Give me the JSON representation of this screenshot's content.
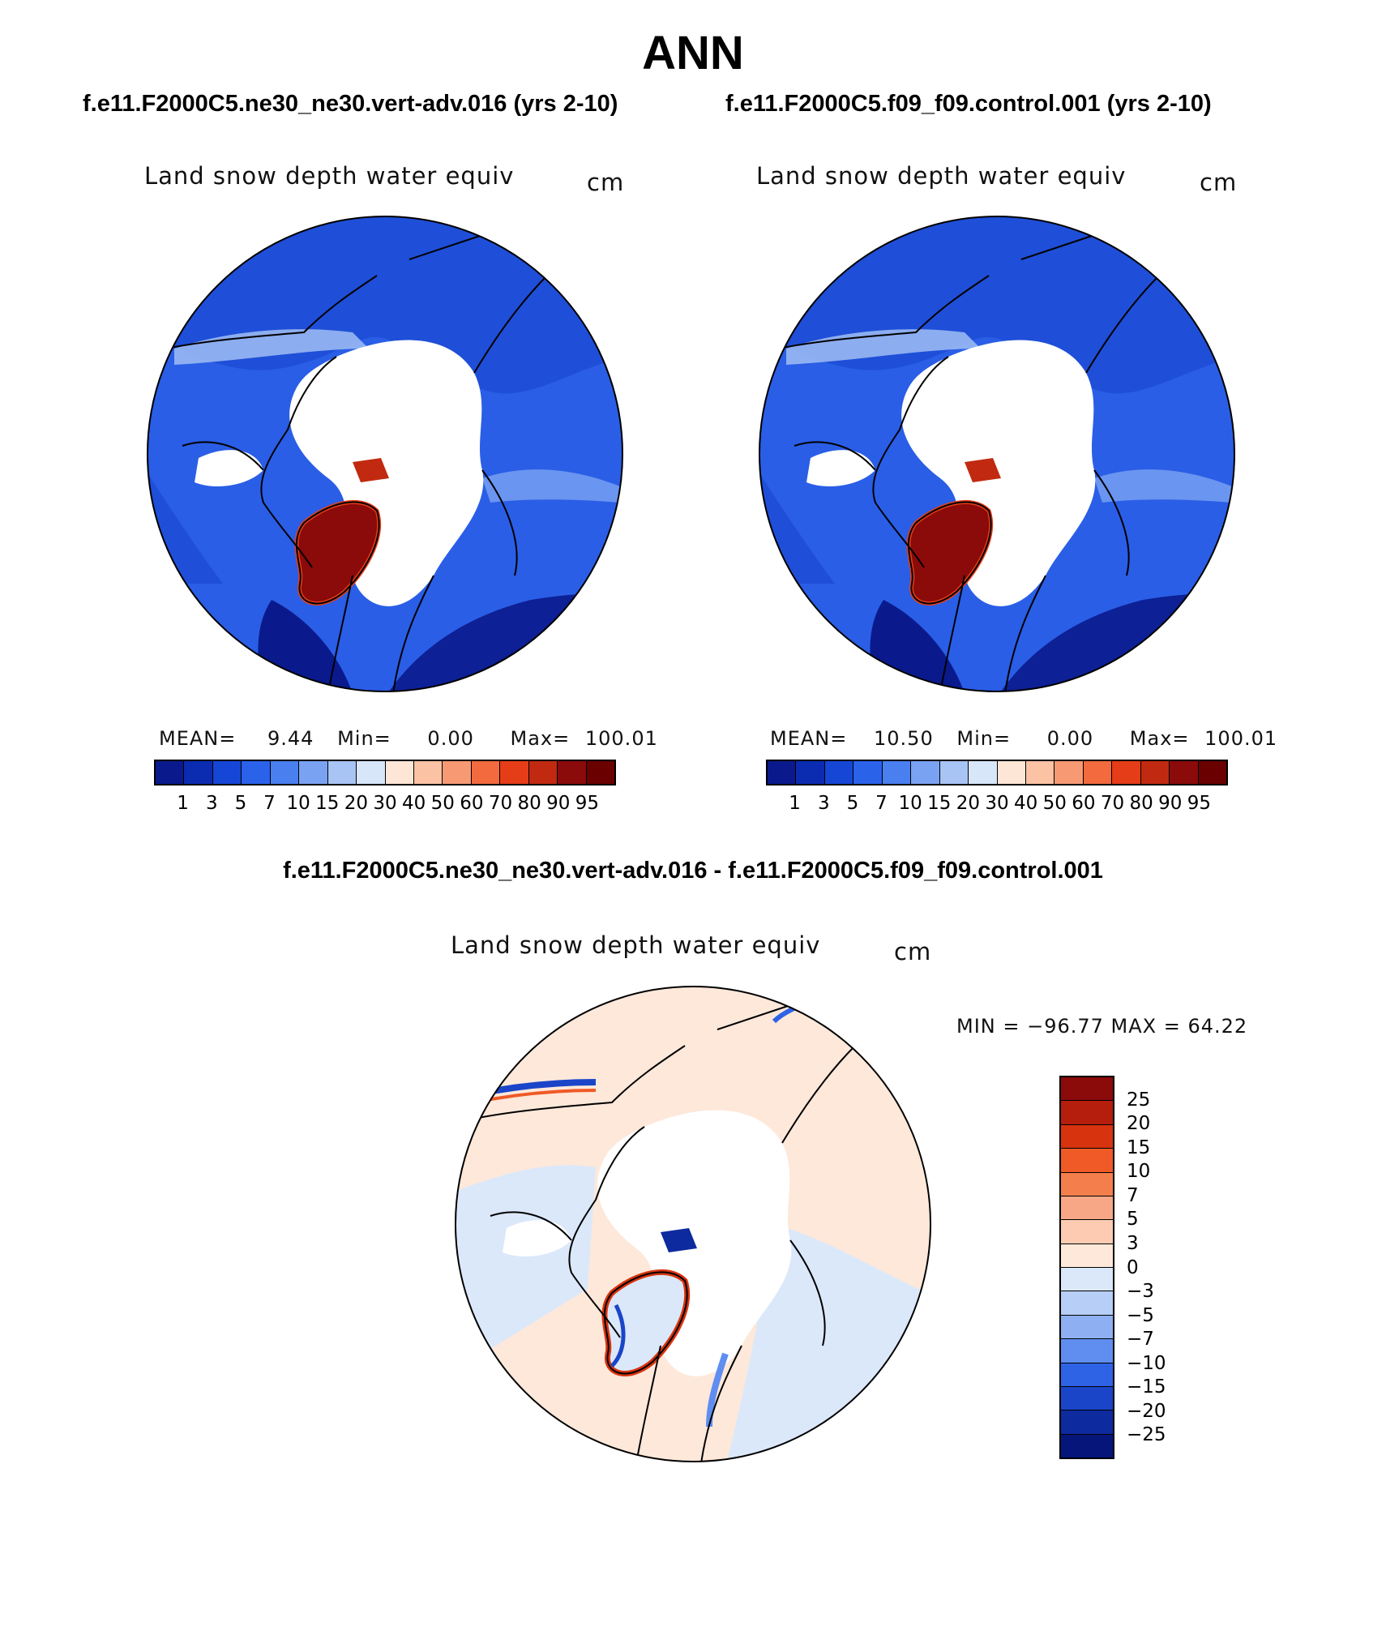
{
  "title": "ANN",
  "panels": [
    {
      "case": "f.e11.F2000C5.ne30_ne30.vert-adv.016 (yrs 2-10)",
      "variable": "Land snow depth water equiv",
      "units": "cm",
      "mean_label": "MEAN=",
      "mean_value": "9.44",
      "min_label": "Min=",
      "min_value": "0.00",
      "max_label": "Max=",
      "max_value": "100.01"
    },
    {
      "case": "f.e11.F2000C5.f09_f09.control.001 (yrs 2-10)",
      "variable": "Land snow depth water equiv",
      "units": "cm",
      "mean_label": "MEAN=",
      "mean_value": "10.50",
      "min_label": "Min=",
      "min_value": "0.00",
      "max_label": "Max=",
      "max_value": "100.01"
    }
  ],
  "diff": {
    "title": "f.e11.F2000C5.ne30_ne30.vert-adv.016 - f.e11.F2000C5.f09_f09.control.001",
    "variable": "Land snow depth water equiv",
    "units": "cm",
    "minmax": "MIN = −96.77 MAX =   64.22"
  },
  "colorbar_abs": {
    "levels": [
      "1",
      "3",
      "5",
      "7",
      "10",
      "15",
      "20",
      "30",
      "40",
      "50",
      "60",
      "70",
      "80",
      "90",
      "95"
    ],
    "colors": [
      "#0a1a8c",
      "#0b2bb0",
      "#1546d6",
      "#2a62ea",
      "#4a7ff0",
      "#7aa2f2",
      "#a8c4f5",
      "#d8e6fa",
      "#fde6d6",
      "#fbc3a4",
      "#f79a74",
      "#f26a3e",
      "#e53d18",
      "#c12a10",
      "#8b0a0a",
      "#6a0000"
    ]
  },
  "colorbar_diff": {
    "levels": [
      "25",
      "20",
      "15",
      "10",
      "7",
      "5",
      "3",
      "0",
      "−3",
      "−5",
      "−7",
      "−10",
      "−15",
      "−20",
      "−25"
    ],
    "colors": [
      "#8b0a0a",
      "#b51d0d",
      "#d8330f",
      "#ef5a26",
      "#f47f4d",
      "#f8a786",
      "#fccbb2",
      "#fde8da",
      "#dbe8fa",
      "#b7cef6",
      "#8eb0f3",
      "#5f8ef0",
      "#2f63e6",
      "#1a45c8",
      "#0d2a9e",
      "#06157a"
    ]
  }
}
